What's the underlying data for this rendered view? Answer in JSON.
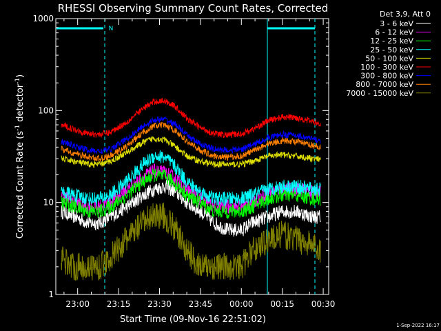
{
  "chart_data": {
    "type": "line",
    "title": "RHESSI Observing Summary Count Rates, Corrected",
    "xlabel": "Start Time (09-Nov-16 22:51:02)",
    "ylabel_main": "Corrected Count Rate (s",
    "ylabel_mid": " detector",
    "ylabel_end": ")",
    "ylabel_exp": "-1",
    "y_scale": "log",
    "ylim": [
      1,
      1000
    ],
    "y_ticks": [
      {
        "value": 1,
        "label": "1"
      },
      {
        "value": 10,
        "label": "10"
      },
      {
        "value": 100,
        "label": "100"
      },
      {
        "value": 1000,
        "label": "1000"
      }
    ],
    "x_range_minutes": [
      -8,
      92
    ],
    "x_ticks": [
      {
        "minutes": 0,
        "label": "23:00"
      },
      {
        "minutes": 15,
        "label": "23:15"
      },
      {
        "minutes": 30,
        "label": "23:30"
      },
      {
        "minutes": 45,
        "label": "23:45"
      },
      {
        "minutes": 60,
        "label": "00:00"
      },
      {
        "minutes": 75,
        "label": "00:15"
      },
      {
        "minutes": 90,
        "label": "00:30"
      }
    ],
    "legend_header": "Det 3,9, Att 0",
    "legend_position": "right",
    "series": [
      {
        "name": "3 - 6 keV",
        "color": "#ffffff",
        "points": [
          [
            -6,
            8
          ],
          [
            -1,
            7
          ],
          [
            4,
            6
          ],
          [
            8,
            6
          ],
          [
            12,
            7
          ],
          [
            18,
            9
          ],
          [
            24,
            12
          ],
          [
            28,
            14
          ],
          [
            32,
            15
          ],
          [
            36,
            13
          ],
          [
            40,
            10
          ],
          [
            45,
            8
          ],
          [
            50,
            6
          ],
          [
            55,
            5
          ],
          [
            60,
            5
          ],
          [
            64,
            6
          ],
          [
            70,
            7
          ],
          [
            75,
            8
          ],
          [
            80,
            8
          ],
          [
            86,
            7
          ],
          [
            89,
            7
          ]
        ]
      },
      {
        "name": "6 - 12 keV",
        "color": "#ff00ff",
        "points": [
          [
            -6,
            12
          ],
          [
            -1,
            10
          ],
          [
            4,
            9
          ],
          [
            8,
            9
          ],
          [
            12,
            10
          ],
          [
            18,
            14
          ],
          [
            24,
            19
          ],
          [
            28,
            22
          ],
          [
            32,
            21
          ],
          [
            36,
            18
          ],
          [
            40,
            14
          ],
          [
            45,
            11
          ],
          [
            50,
            9
          ],
          [
            55,
            9
          ],
          [
            60,
            9
          ],
          [
            64,
            10
          ],
          [
            70,
            13
          ],
          [
            75,
            14
          ],
          [
            80,
            14
          ],
          [
            86,
            13
          ],
          [
            89,
            13
          ]
        ]
      },
      {
        "name": "12 - 25 keV",
        "color": "#00ff00",
        "points": [
          [
            -6,
            10
          ],
          [
            -1,
            9
          ],
          [
            4,
            8
          ],
          [
            8,
            8
          ],
          [
            12,
            9
          ],
          [
            18,
            12
          ],
          [
            24,
            17
          ],
          [
            28,
            20
          ],
          [
            32,
            19
          ],
          [
            36,
            16
          ],
          [
            40,
            12
          ],
          [
            45,
            10
          ],
          [
            50,
            8
          ],
          [
            55,
            8
          ],
          [
            60,
            8
          ],
          [
            64,
            9
          ],
          [
            70,
            11
          ],
          [
            75,
            12
          ],
          [
            80,
            12
          ],
          [
            86,
            11
          ],
          [
            89,
            11
          ]
        ]
      },
      {
        "name": "25 - 50 keV",
        "color": "#00ffff",
        "points": [
          [
            -6,
            13
          ],
          [
            -1,
            12
          ],
          [
            4,
            11
          ],
          [
            8,
            11
          ],
          [
            12,
            12
          ],
          [
            18,
            17
          ],
          [
            24,
            26
          ],
          [
            28,
            32
          ],
          [
            32,
            31
          ],
          [
            36,
            24
          ],
          [
            40,
            17
          ],
          [
            45,
            13
          ],
          [
            50,
            11
          ],
          [
            55,
            11
          ],
          [
            60,
            11
          ],
          [
            64,
            12
          ],
          [
            70,
            14
          ],
          [
            75,
            15
          ],
          [
            80,
            15
          ],
          [
            86,
            14
          ],
          [
            89,
            14
          ]
        ]
      },
      {
        "name": "50 - 100 keV",
        "color": "#e0e000",
        "points": [
          [
            -6,
            30
          ],
          [
            -1,
            28
          ],
          [
            4,
            26
          ],
          [
            8,
            26
          ],
          [
            12,
            28
          ],
          [
            18,
            35
          ],
          [
            24,
            45
          ],
          [
            28,
            50
          ],
          [
            32,
            48
          ],
          [
            36,
            40
          ],
          [
            40,
            32
          ],
          [
            45,
            28
          ],
          [
            50,
            26
          ],
          [
            55,
            26
          ],
          [
            60,
            26
          ],
          [
            64,
            28
          ],
          [
            70,
            32
          ],
          [
            75,
            33
          ],
          [
            80,
            32
          ],
          [
            86,
            30
          ],
          [
            89,
            29
          ]
        ]
      },
      {
        "name": "100 - 300 keV",
        "color": "#ff0000",
        "points": [
          [
            -6,
            70
          ],
          [
            -1,
            62
          ],
          [
            4,
            56
          ],
          [
            8,
            55
          ],
          [
            12,
            58
          ],
          [
            18,
            75
          ],
          [
            24,
            105
          ],
          [
            28,
            125
          ],
          [
            32,
            128
          ],
          [
            36,
            110
          ],
          [
            40,
            82
          ],
          [
            45,
            65
          ],
          [
            50,
            56
          ],
          [
            55,
            54
          ],
          [
            60,
            56
          ],
          [
            64,
            62
          ],
          [
            70,
            78
          ],
          [
            75,
            85
          ],
          [
            80,
            84
          ],
          [
            86,
            76
          ],
          [
            89,
            72
          ]
        ]
      },
      {
        "name": "300 - 800 keV",
        "color": "#0000ff",
        "points": [
          [
            -6,
            46
          ],
          [
            -1,
            41
          ],
          [
            4,
            37
          ],
          [
            8,
            36
          ],
          [
            12,
            38
          ],
          [
            18,
            49
          ],
          [
            24,
            68
          ],
          [
            28,
            79
          ],
          [
            32,
            80
          ],
          [
            36,
            70
          ],
          [
            40,
            54
          ],
          [
            45,
            43
          ],
          [
            50,
            38
          ],
          [
            55,
            37
          ],
          [
            60,
            38
          ],
          [
            64,
            42
          ],
          [
            70,
            51
          ],
          [
            75,
            55
          ],
          [
            80,
            54
          ],
          [
            86,
            49
          ],
          [
            89,
            47
          ]
        ]
      },
      {
        "name": "800 - 7000 keV",
        "color": "#ff8000",
        "points": [
          [
            -6,
            38
          ],
          [
            -1,
            34
          ],
          [
            4,
            31
          ],
          [
            8,
            30
          ],
          [
            12,
            32
          ],
          [
            18,
            41
          ],
          [
            24,
            58
          ],
          [
            28,
            68
          ],
          [
            32,
            69
          ],
          [
            36,
            60
          ],
          [
            40,
            46
          ],
          [
            45,
            37
          ],
          [
            50,
            32
          ],
          [
            55,
            31
          ],
          [
            60,
            32
          ],
          [
            64,
            36
          ],
          [
            70,
            44
          ],
          [
            75,
            47
          ],
          [
            80,
            46
          ],
          [
            86,
            42
          ],
          [
            89,
            40
          ]
        ]
      },
      {
        "name": "7000 - 15000 keV",
        "color": "#808000",
        "points": [
          [
            -6,
            2.5
          ],
          [
            -1,
            2
          ],
          [
            4,
            2
          ],
          [
            8,
            2
          ],
          [
            12,
            2.5
          ],
          [
            18,
            4
          ],
          [
            24,
            6
          ],
          [
            28,
            7.5
          ],
          [
            32,
            7
          ],
          [
            36,
            5
          ],
          [
            40,
            3
          ],
          [
            45,
            2
          ],
          [
            50,
            2
          ],
          [
            55,
            2
          ],
          [
            60,
            2
          ],
          [
            64,
            3
          ],
          [
            70,
            4
          ],
          [
            75,
            4.5
          ],
          [
            80,
            4
          ],
          [
            86,
            3.5
          ],
          [
            89,
            3
          ]
        ]
      }
    ],
    "saa_marker_label": "N"
  },
  "footer": {
    "timestamp": "1-Sep-2022 16:17"
  }
}
